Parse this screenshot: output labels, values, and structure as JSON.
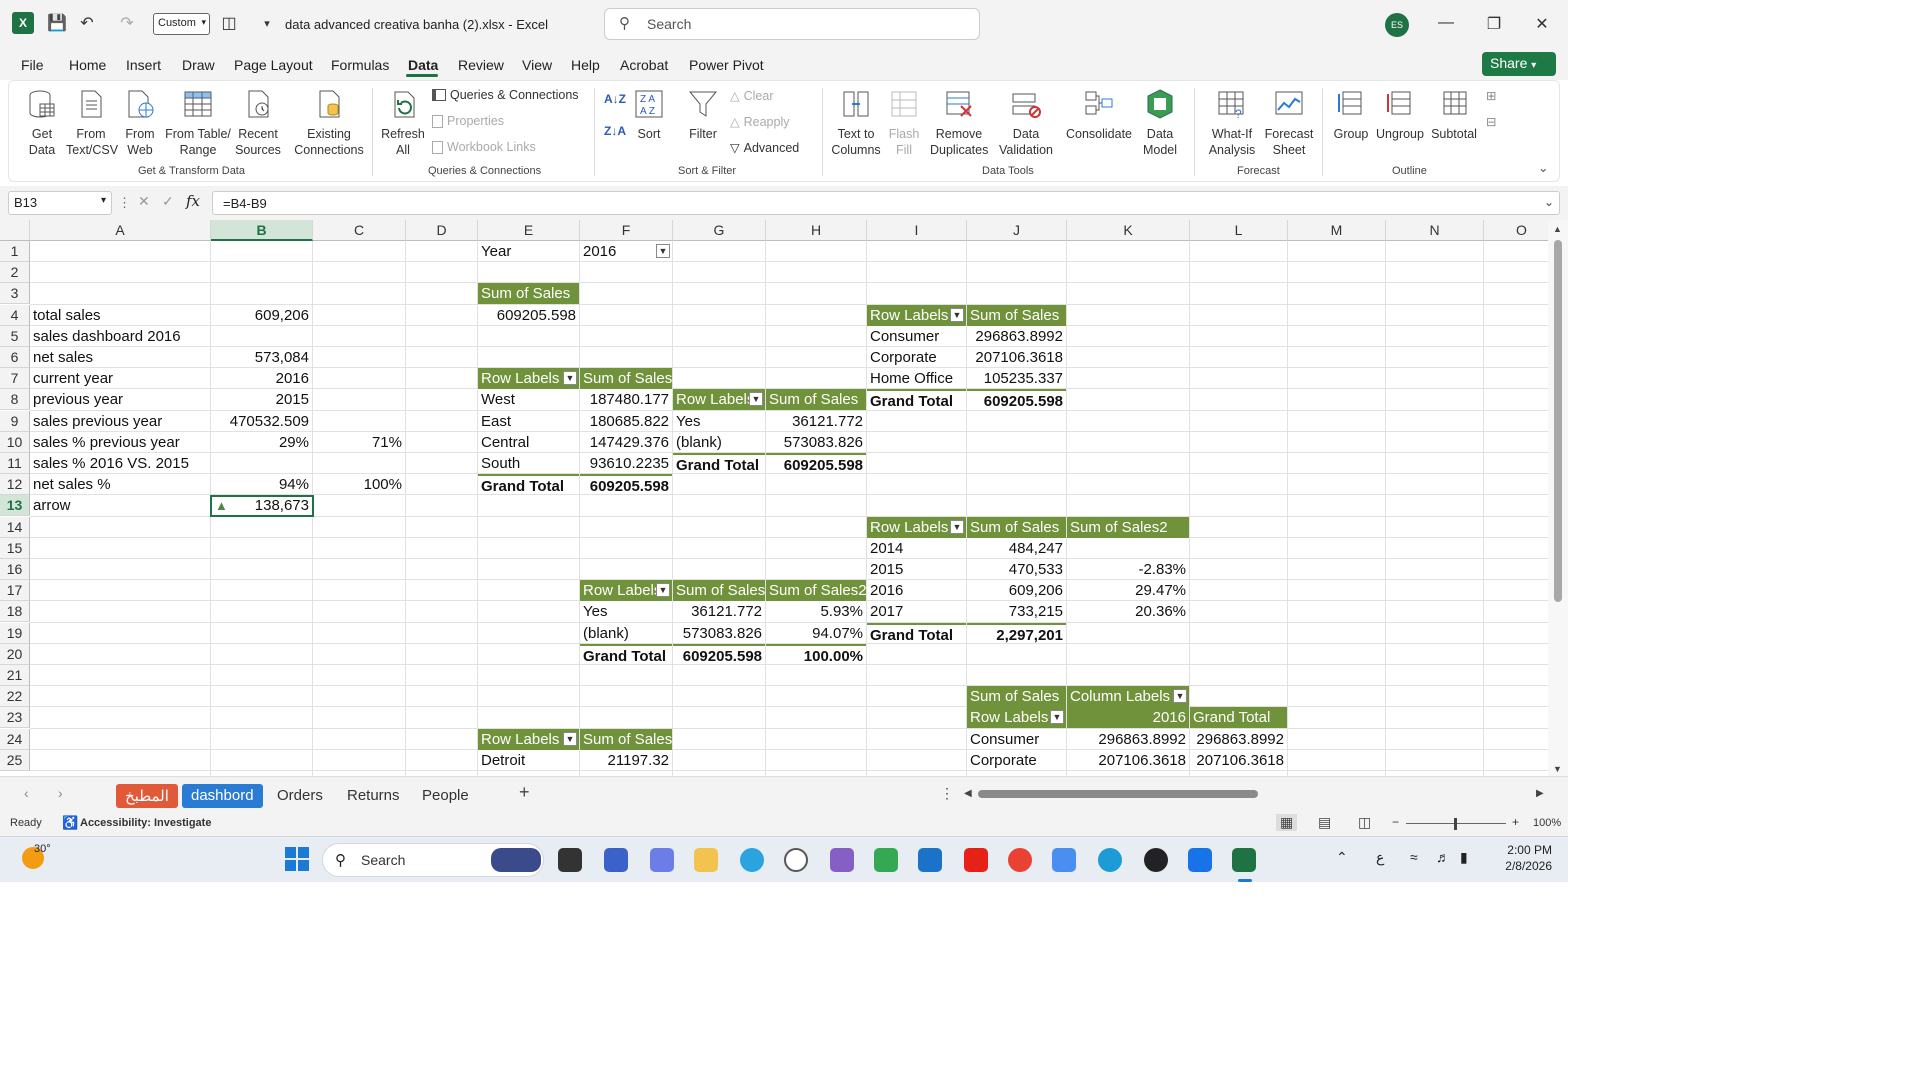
{
  "titlebar": {
    "custom_label": "Custom",
    "doc_title": "data advanced creativa banha (2).xlsx  -  Excel",
    "search_placeholder": "Search",
    "avatar": "ES"
  },
  "menu": [
    "File",
    "Home",
    "Insert",
    "Draw",
    "Page Layout",
    "Formulas",
    "Data",
    "Review",
    "View",
    "Help",
    "Acrobat",
    "Power Pivot"
  ],
  "active_menu": "Data",
  "share_label": "Share",
  "ribbon": {
    "get_data": "Get\nData",
    "from_text": "From\nText/CSV",
    "from_web": "From\nWeb",
    "from_table": "From Table/\nRange",
    "recent_sources": "Recent\nSources",
    "existing_connections": "Existing\nConnections",
    "group_get_transform": "Get & Transform Data",
    "refresh_all": "Refresh\nAll",
    "queries_connections": "Queries & Connections",
    "properties": "Properties",
    "workbook_links": "Workbook Links",
    "group_queries": "Queries & Connections",
    "sort": "Sort",
    "filter": "Filter",
    "clear": "Clear",
    "reapply": "Reapply",
    "advanced": "Advanced",
    "group_sort_filter": "Sort & Filter",
    "text_to_columns": "Text to\nColumns",
    "flash_fill": "Flash\nFill",
    "remove_duplicates": "Remove\nDuplicates",
    "data_validation": "Data\nValidation",
    "consolidate": "Consolidate",
    "data_model": "Data\nModel",
    "group_data_tools": "Data Tools",
    "what_if": "What-If\nAnalysis",
    "forecast_sheet": "Forecast\nSheet",
    "group_forecast": "Forecast",
    "group": "Group",
    "ungroup": "Ungroup",
    "subtotal": "Subtotal",
    "group_outline": "Outline"
  },
  "formula_bar": {
    "name_box": "B13",
    "formula": "=B4-B9"
  },
  "columns": [
    "A",
    "B",
    "C",
    "D",
    "E",
    "F",
    "G",
    "H",
    "I",
    "J",
    "K",
    "L",
    "M",
    "N",
    "O"
  ],
  "rows": [
    "1",
    "2",
    "3",
    "4",
    "5",
    "6",
    "7",
    "8",
    "9",
    "10",
    "11",
    "12",
    "13",
    "14",
    "15",
    "16",
    "17",
    "18",
    "19",
    "20",
    "21",
    "22",
    "23",
    "24",
    "25"
  ],
  "cells": {
    "E1": "Year",
    "F1": "2016",
    "E3": "Sum of Sales",
    "E4": "609205.598",
    "A4": "total sales",
    "B4": "609,206",
    "A5": "sales dashboard 2016",
    "A6": " net sales",
    "B6": "573,084",
    "A7": "current year",
    "B7": "2016",
    "A8": "previous year",
    "B8": "2015",
    "A9": "sales previous year",
    "B9": "470532.509",
    "A10": "sales % previous year",
    "B10": "29%",
    "C10": "71%",
    "A11": "sales % 2016 VS. 2015",
    "A12": "net sales %",
    "B12": "94%",
    "C12": "100%",
    "A13": "arrow",
    "B13": "138,673",
    "E7": "Row Labels",
    "F7": "Sum of Sales",
    "E8": "West",
    "F8": "187480.177",
    "E9": "East",
    "F9": "180685.822",
    "E10": "Central",
    "F10": "147429.376",
    "E11": "South",
    "F11": "93610.2235",
    "E12": "Grand Total",
    "F12": "609205.598",
    "G8": "Row Labels",
    "H8": "Sum of Sales",
    "G9": "Yes",
    "H9": "36121.772",
    "G10": "(blank)",
    "H10": "573083.826",
    "G11": "Grand Total",
    "H11": "609205.598",
    "I4": "Row Labels",
    "J4": "Sum of Sales",
    "I5": "Consumer",
    "J5": "296863.8992",
    "I6": "Corporate",
    "J6": "207106.3618",
    "I7": "Home Office",
    "J7": "105235.337",
    "I8": "Grand Total",
    "J8": "609205.598",
    "I14": "Row Labels",
    "J14": "Sum of Sales",
    "K14": "Sum of Sales2",
    "I15": "2014",
    "J15": "484,247",
    "I16": "2015",
    "J16": "470,533",
    "K16": "-2.83%",
    "I17": "2016",
    "J17": "609,206",
    "K17": "29.47%",
    "I18": "2017",
    "J18": "733,215",
    "K18": "20.36%",
    "I19": "Grand Total",
    "J19": "2,297,201",
    "F17": "Row Labels",
    "G17": "Sum of Sales",
    "H17": "Sum of Sales2",
    "F18": "Yes",
    "G18": "36121.772",
    "H18": "5.93%",
    "F19": "(blank)",
    "G19": "573083.826",
    "H19": "94.07%",
    "F20": "Grand Total",
    "G20": "609205.598",
    "H20": "100.00%",
    "J22": "Sum of Sales",
    "K22": "Column Labels",
    "J23": "Row Labels",
    "K23": "2016",
    "L23": "Grand Total",
    "J24": "Consumer",
    "K24": "296863.8992",
    "L24": "296863.8992",
    "J25": "Corporate",
    "K25": "207106.3618",
    "L25": "207106.3618",
    "E24": "Row Labels",
    "F24": "Sum of Sales",
    "E25": "Detroit",
    "F25": "21197.32"
  },
  "sheet_tabs": [
    "المطبخ",
    "dashbord",
    "Orders",
    "Returns",
    "People"
  ],
  "active_sheet": "dashbord",
  "status": {
    "ready": "Ready",
    "accessibility": "Accessibility: Investigate",
    "zoom": "100%"
  },
  "taskbar": {
    "weather": "30°",
    "search": "Search",
    "time": "2:00 PM",
    "date": "2/8/2026"
  },
  "colors": {
    "excel_green": "#1f7244",
    "pivot_header": "#70923a",
    "active_tab": "#2a7bd4"
  }
}
